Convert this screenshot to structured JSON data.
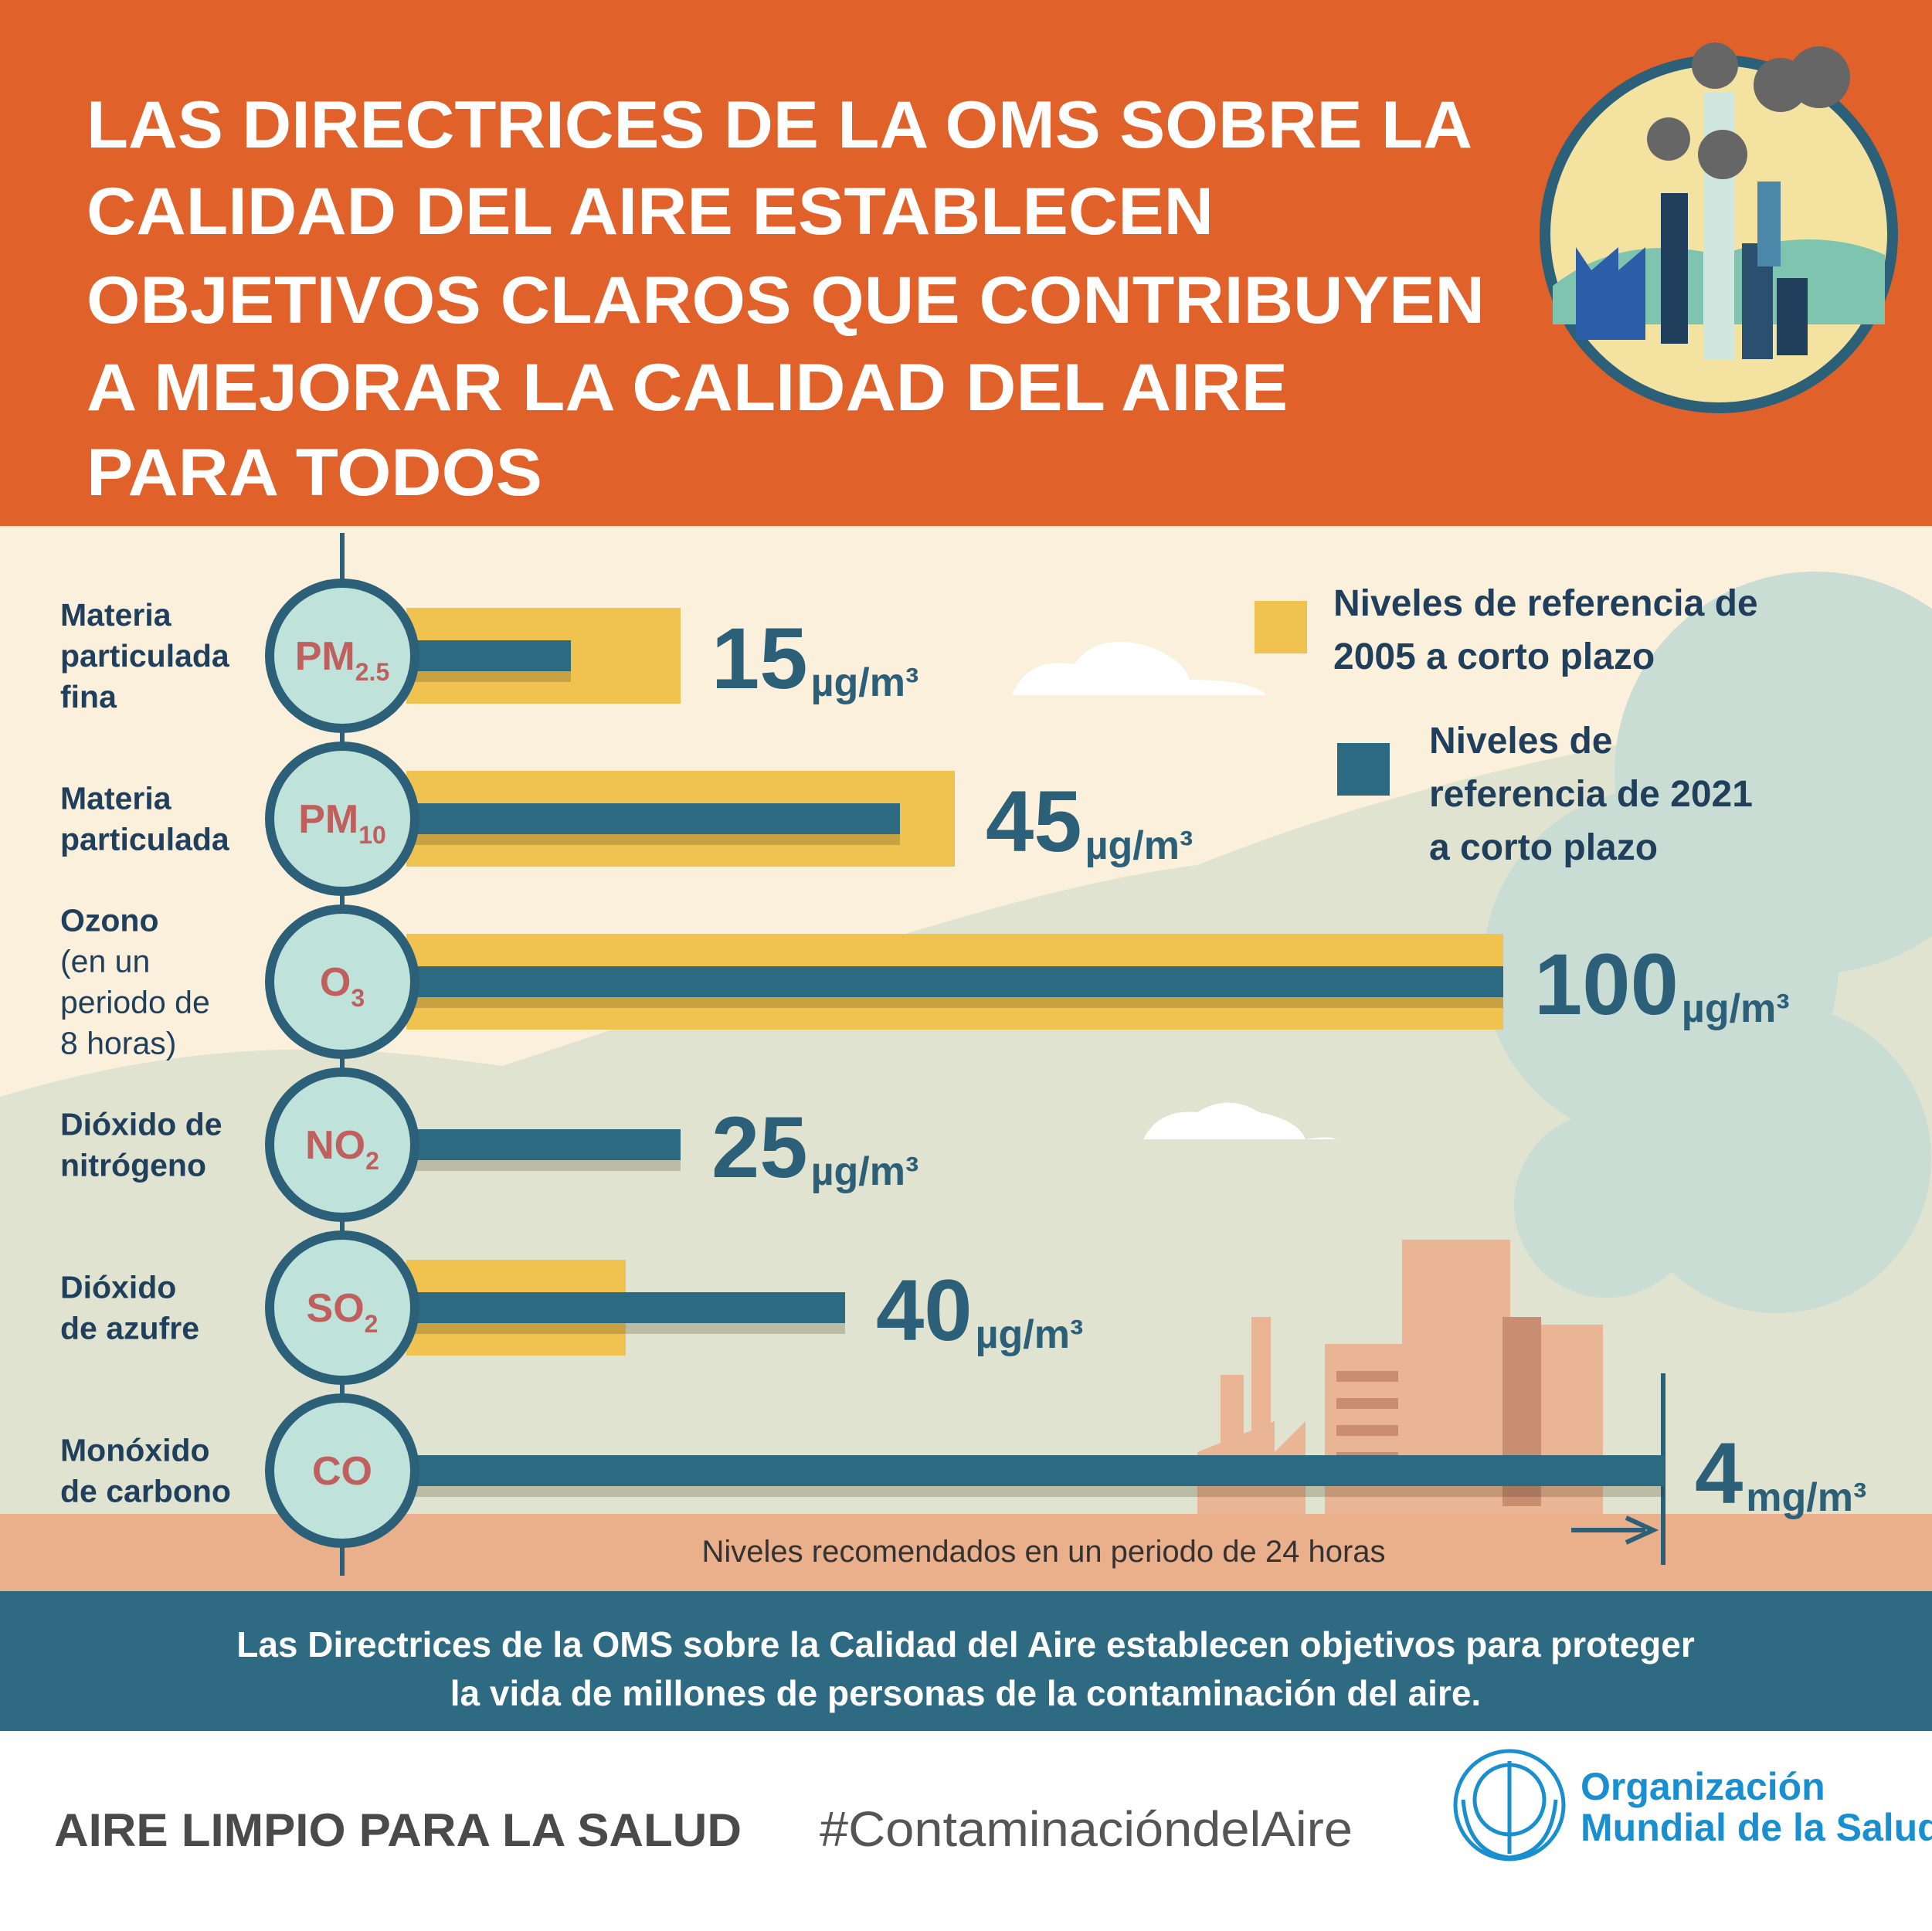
{
  "header": {
    "title_lines": [
      "LAS DIRECTRICES DE LA OMS SOBRE LA",
      "CALIDAD DEL AIRE ESTABLECEN",
      "OBJETIVOS CLAROS QUE CONTRIBUYEN",
      "A MEJORAR LA CALIDAD DEL AIRE",
      "PARA TODOS"
    ]
  },
  "legend": [
    {
      "label_lines": [
        "Niveles de referencia de",
        "2005 a corto plazo"
      ],
      "color": "#f0c250"
    },
    {
      "label_lines": [
        "Niveles de",
        "referencia de 2021",
        "a corto plazo"
      ],
      "color": "#2c6a82"
    }
  ],
  "pollutants": [
    {
      "name_lines": [
        "Materia",
        "particulada",
        "fina"
      ],
      "symbol": "PM",
      "subscript": "2.5",
      "value": 15,
      "unit": "µg/m³",
      "ref_2005": 25
    },
    {
      "name_lines": [
        "Materia",
        "particulada"
      ],
      "symbol": "PM",
      "subscript": "10",
      "value": 45,
      "unit": "µg/m³",
      "ref_2005": 50
    },
    {
      "name_lines": [
        "Ozono"
      ],
      "note_lines": [
        "(en un",
        "periodo de",
        "8 horas)"
      ],
      "symbol": "O",
      "subscript": "3",
      "value": 100,
      "unit": "µg/m³",
      "ref_2005": 100
    },
    {
      "name_lines": [
        "Dióxido de",
        "nitrógeno"
      ],
      "symbol": "NO",
      "subscript": "2",
      "value": 25,
      "unit": "µg/m³"
    },
    {
      "name_lines": [
        "Dióxido",
        "de azufre"
      ],
      "symbol": "SO",
      "subscript": "2",
      "value": 40,
      "unit": "µg/m³",
      "ref_2005": 20
    },
    {
      "name_lines": [
        "Monóxido",
        "de carbono"
      ],
      "symbol": "CO",
      "value": 4,
      "unit": "mg/m³"
    }
  ],
  "note": "Niveles recomendados en un periodo de 24 horas",
  "banner": {
    "lines": [
      "Las Directrices de la OMS sobre la Calidad del Aire establecen objetivos para proteger",
      "la vida de millones de personas de la contaminación del aire."
    ]
  },
  "footer": {
    "slogan": "AIRE LIMPIO PARA LA SALUD",
    "hashtag": "#ContaminacióndelAire",
    "org_lines": [
      "Organización",
      "Mundial de la Salud"
    ]
  }
}
